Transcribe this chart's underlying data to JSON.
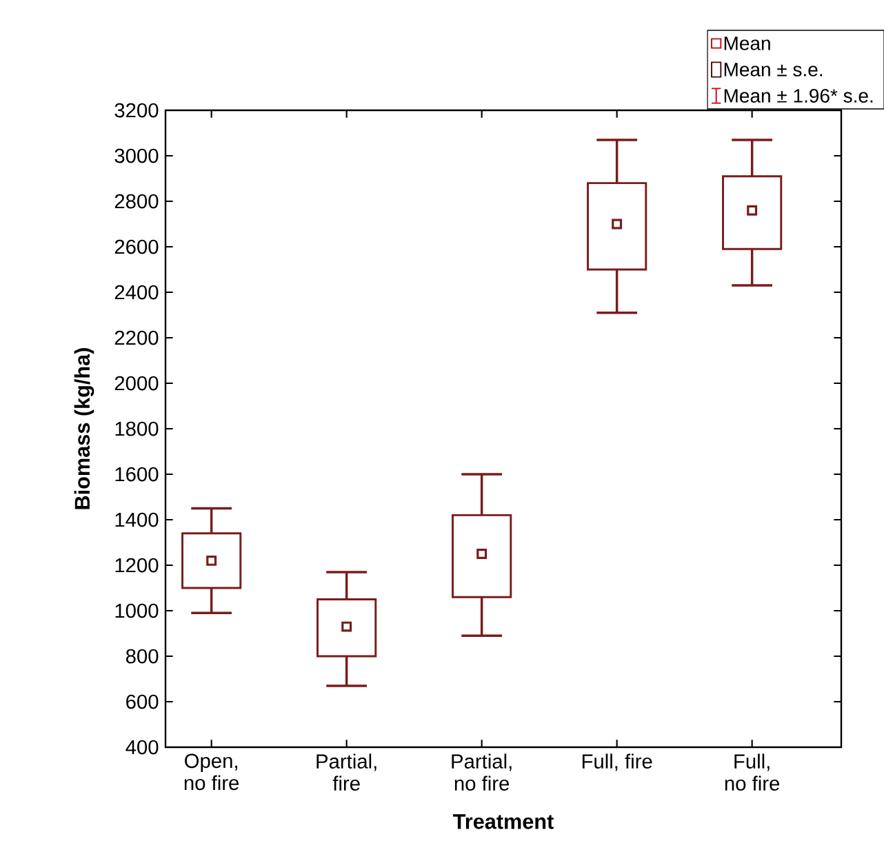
{
  "chart_data": {
    "type": "box",
    "xlabel": "Treatment",
    "ylabel": "Biomass (kg/ha)",
    "categories": [
      "Open,\nno fire",
      "Partial,\nfire",
      "Partial,\nno fire",
      "Full, fire",
      "Full,\nno fire"
    ],
    "series": [
      {
        "color": "#7a1c1c",
        "boxes": [
          {
            "low": 990,
            "q1": 1100,
            "mean": 1220,
            "q3": 1340,
            "high": 1450
          },
          {
            "low": 670,
            "q1": 800,
            "mean": 930,
            "q3": 1050,
            "high": 1170
          },
          {
            "low": 890,
            "q1": 1060,
            "mean": 1250,
            "q3": 1420,
            "high": 1600
          },
          {
            "low": 2310,
            "q1": 2500,
            "mean": 2700,
            "q3": 2880,
            "high": 3070
          },
          {
            "low": 2430,
            "q1": 2590,
            "mean": 2760,
            "q3": 2910,
            "high": 3070
          }
        ]
      }
    ],
    "ylim": [
      400,
      3200
    ],
    "yticks": [
      400,
      600,
      800,
      1000,
      1200,
      1400,
      1600,
      1800,
      2000,
      2200,
      2400,
      2600,
      2800,
      3000,
      3200
    ],
    "grid": false,
    "annotations": [
      "Mean",
      "Mean ± s.e.",
      "Mean ± 1.96* s.e."
    ]
  }
}
